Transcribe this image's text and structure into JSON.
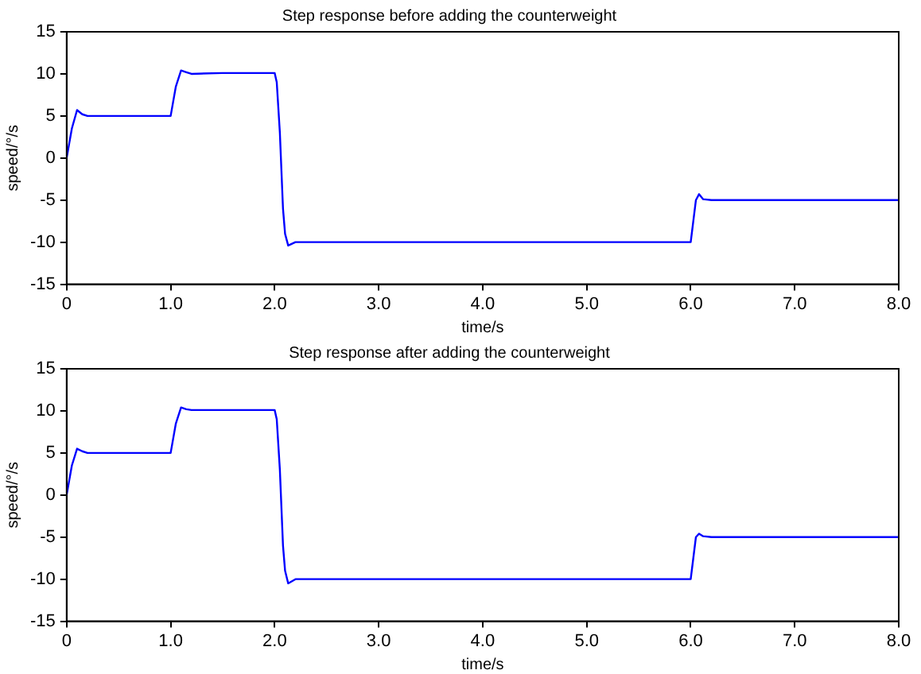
{
  "chart_data": [
    {
      "type": "line",
      "title": "Step response before adding the counterweight",
      "xlabel": "time/s",
      "ylabel": "speed/°/s",
      "series": [
        {
          "color": "#0000ff",
          "x": [
            0,
            0.05,
            0.1,
            0.15,
            0.2,
            0.5,
            0.8,
            1.0,
            1.05,
            1.1,
            1.15,
            1.2,
            1.5,
            1.8,
            2.0,
            2.02,
            2.05,
            2.08,
            2.1,
            2.13,
            2.2,
            2.5,
            3,
            3.5,
            4,
            4.5,
            5,
            5.5,
            6,
            6.02,
            6.05,
            6.08,
            6.12,
            6.2,
            6.5,
            7,
            7.5,
            8
          ],
          "values": [
            0,
            3.5,
            5.7,
            5.2,
            5.0,
            5.0,
            5.0,
            5.0,
            8.5,
            10.4,
            10.2,
            10.0,
            10.1,
            10.1,
            10.1,
            9,
            3,
            -6,
            -9,
            -10.4,
            -10,
            -10,
            -10,
            -10,
            -10,
            -10,
            -10,
            -10,
            -10,
            -8,
            -5,
            -4.3,
            -4.9,
            -5,
            -5,
            -5,
            -5,
            -5
          ]
        }
      ],
      "xlim": [
        0,
        8
      ],
      "xticks": [
        0,
        {
          "value": 1,
          "label": "1.0"
        },
        {
          "value": 2,
          "label": "2.0"
        },
        {
          "value": 3,
          "label": "3.0"
        },
        {
          "value": 4,
          "label": "4.0"
        },
        {
          "value": 5,
          "label": "5.0"
        },
        {
          "value": 6,
          "label": "6.0"
        },
        {
          "value": 7,
          "label": "7.0"
        },
        {
          "value": 8,
          "label": "8.0"
        }
      ],
      "ylim": [
        -15,
        15
      ],
      "yticks": [
        -15,
        -10,
        -5,
        0,
        5,
        10,
        15
      ],
      "grid": false,
      "legend": false,
      "marker": "none",
      "line_style": "solid"
    },
    {
      "type": "line",
      "title": "Step response after adding the counterweight",
      "xlabel": "time/s",
      "ylabel": "speed/°/s",
      "series": [
        {
          "color": "#0000ff",
          "x": [
            0,
            0.05,
            0.1,
            0.15,
            0.2,
            0.5,
            0.8,
            1.0,
            1.05,
            1.1,
            1.15,
            1.2,
            1.5,
            1.8,
            2.0,
            2.02,
            2.05,
            2.08,
            2.1,
            2.13,
            2.2,
            2.5,
            3,
            3.5,
            4,
            4.5,
            5,
            5.5,
            6,
            6.02,
            6.05,
            6.08,
            6.12,
            6.2,
            6.5,
            7,
            7.5,
            8
          ],
          "values": [
            0,
            3.5,
            5.5,
            5.2,
            5.0,
            5.0,
            5.0,
            5.0,
            8.5,
            10.4,
            10.2,
            10.1,
            10.1,
            10.1,
            10.1,
            9,
            3,
            -6,
            -9,
            -10.5,
            -10,
            -10,
            -10,
            -10,
            -10,
            -10,
            -10,
            -10,
            -10,
            -8,
            -5,
            -4.6,
            -4.9,
            -5,
            -5,
            -5,
            -5,
            -5
          ]
        }
      ],
      "xlim": [
        0,
        8
      ],
      "xticks": [
        0,
        {
          "value": 1,
          "label": "1.0"
        },
        {
          "value": 2,
          "label": "2.0"
        },
        {
          "value": 3,
          "label": "3.0"
        },
        {
          "value": 4,
          "label": "4.0"
        },
        {
          "value": 5,
          "label": "5.0"
        },
        {
          "value": 6,
          "label": "6.0"
        },
        {
          "value": 7,
          "label": "7.0"
        },
        {
          "value": 8,
          "label": "8.0"
        }
      ],
      "ylim": [
        -15,
        15
      ],
      "yticks": [
        -15,
        -10,
        -5,
        0,
        5,
        10,
        15
      ],
      "grid": false,
      "legend": false,
      "marker": "none",
      "line_style": "solid"
    }
  ]
}
